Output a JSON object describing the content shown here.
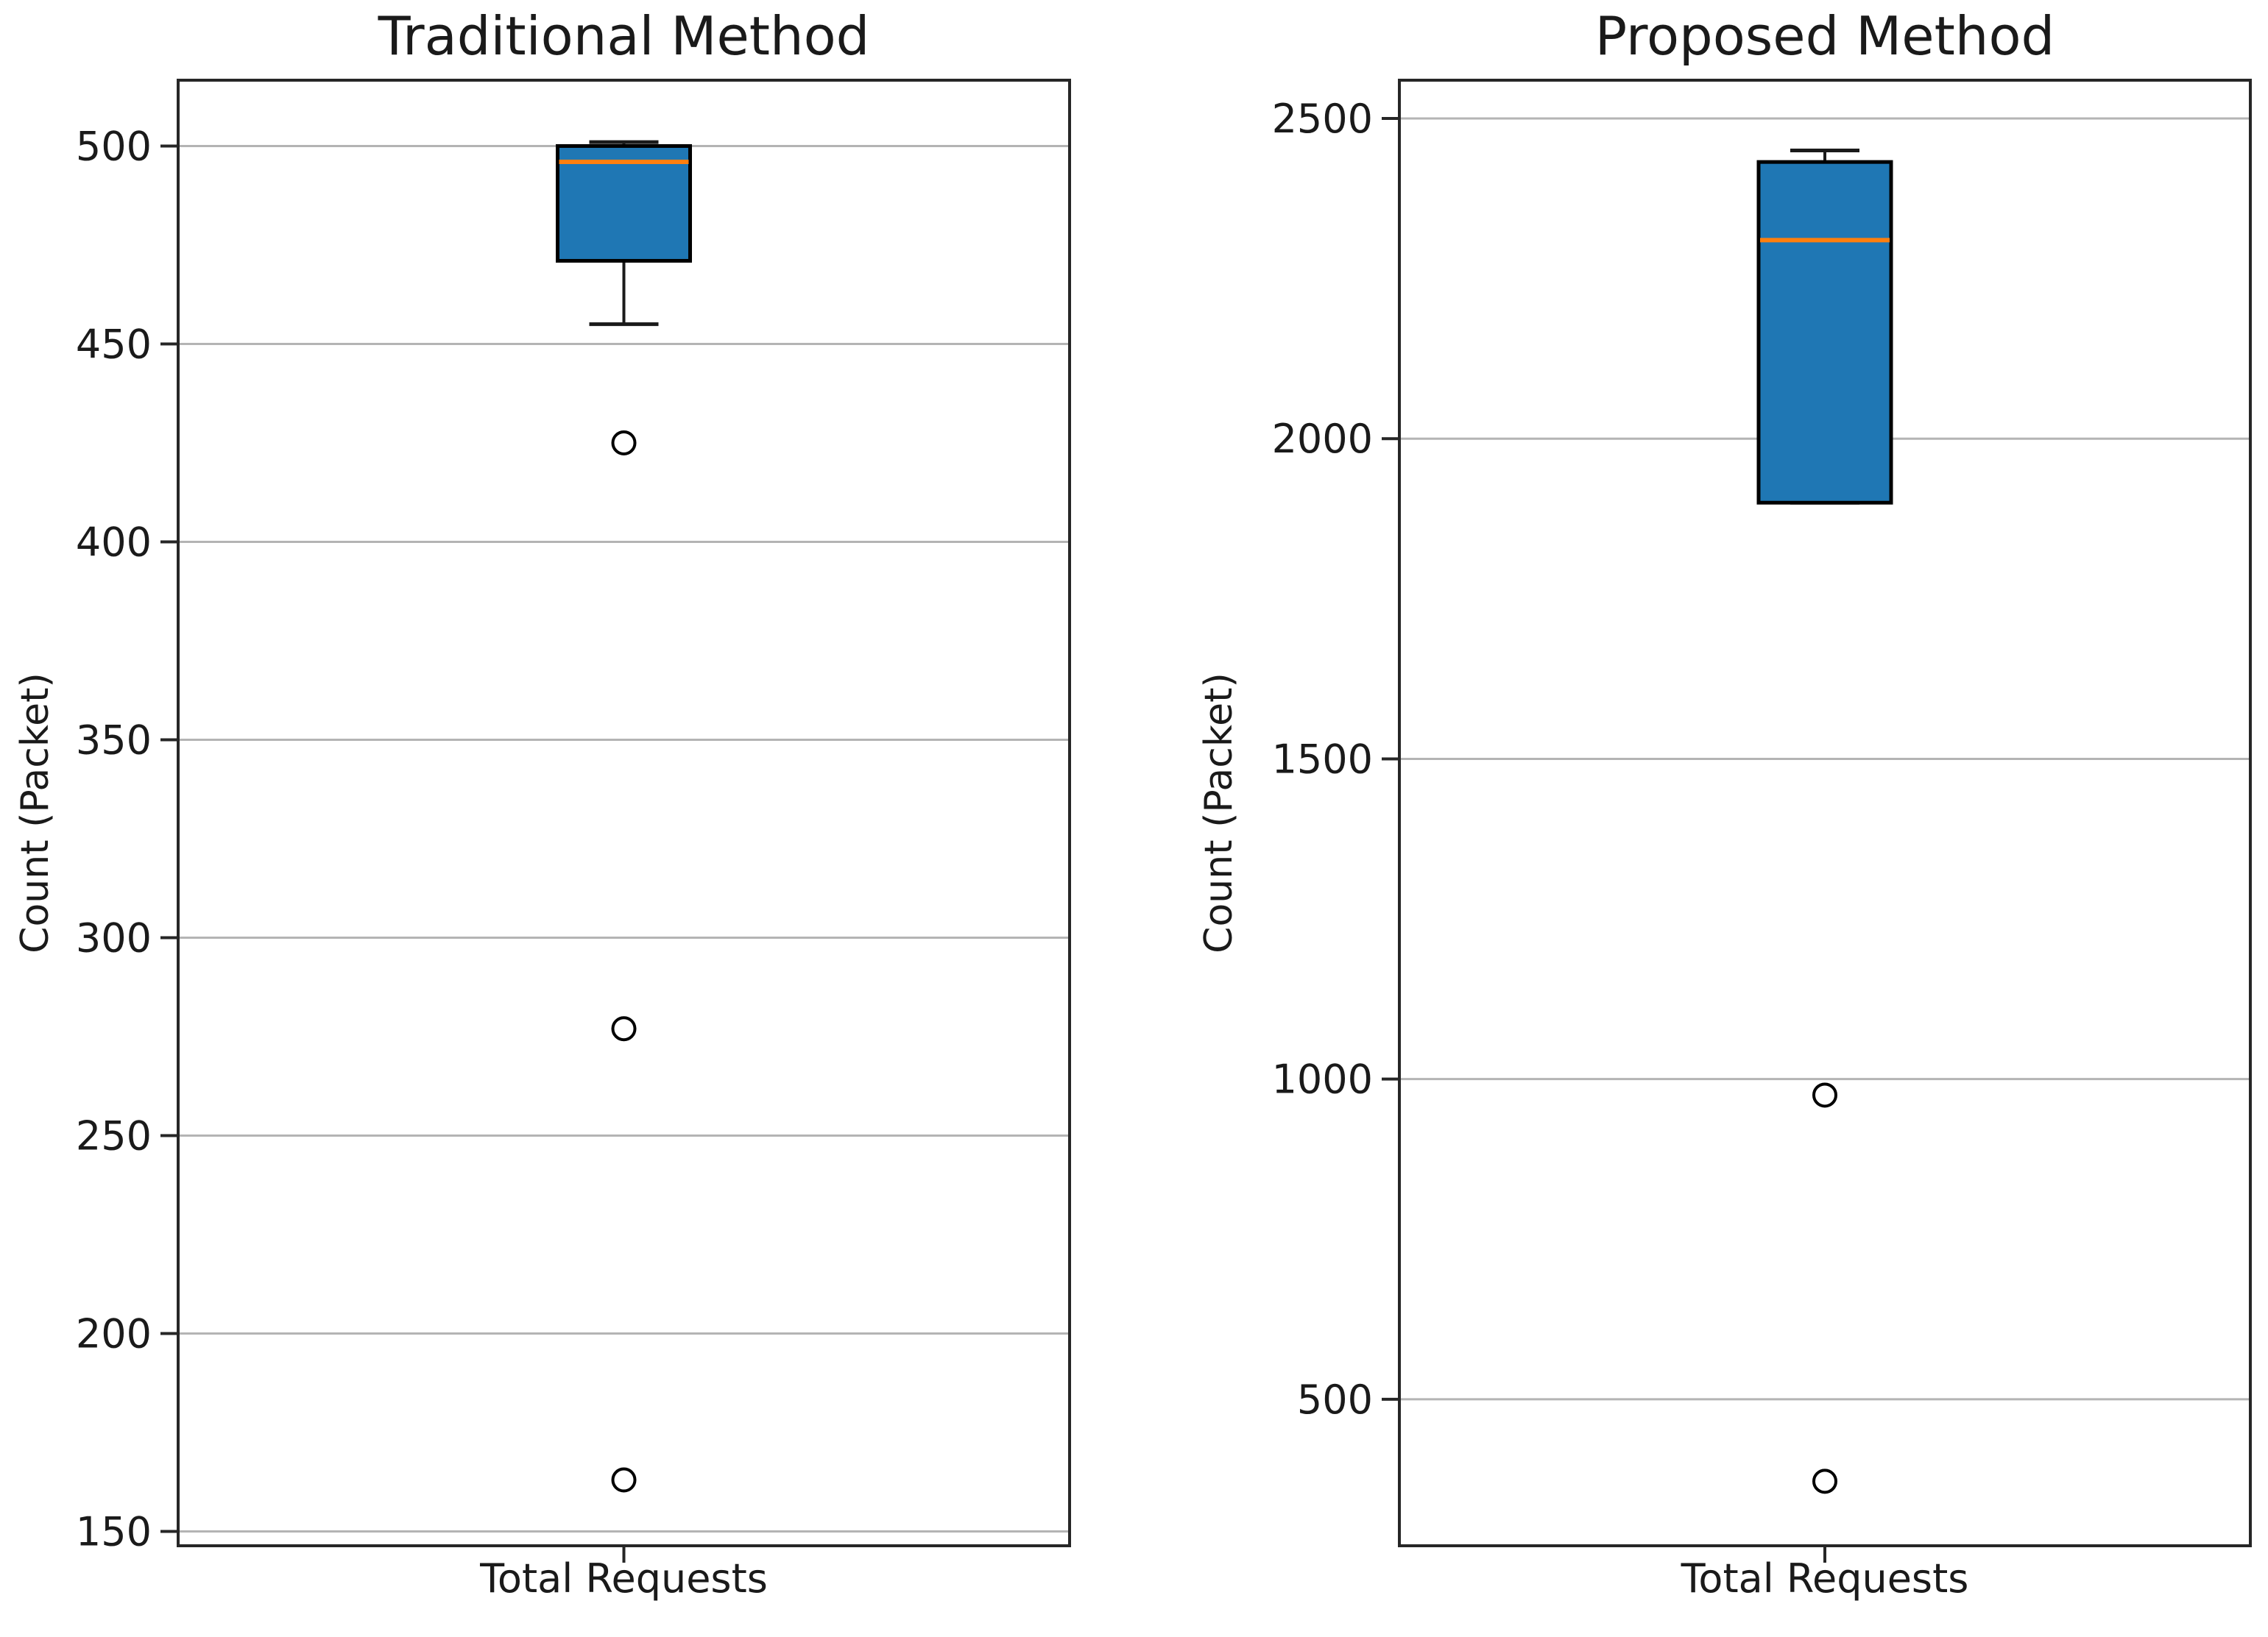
{
  "chart_data": {
    "type": "box",
    "layout": "two panels side by side, vertical box plots, horizontal gridlines on",
    "panels": [
      {
        "title": "Traditional Method",
        "ylabel": "Count (Packet)",
        "x_tick_label": "Total Requests",
        "yticks": [
          150,
          200,
          250,
          300,
          350,
          400,
          450,
          500
        ],
        "ylim": [
          146,
          517
        ],
        "box": {
          "q1": 471,
          "median": 496,
          "q3": 500,
          "whisker_low": 455,
          "whisker_high": 501,
          "outliers": [
            425,
            277,
            163
          ]
        }
      },
      {
        "title": "Proposed Method",
        "ylabel": "Count (Packet)",
        "x_tick_label": "Total Requests",
        "yticks": [
          500,
          1000,
          1500,
          2000,
          2500
        ],
        "ylim": [
          269,
          2562
        ],
        "box": {
          "q1": 1900,
          "median": 2310,
          "q3": 2432,
          "whisker_low": 1900,
          "whisker_high": 2450,
          "outliers": [
            975,
            372
          ]
        }
      }
    ],
    "colors": {
      "box_fill": "#1f77b4",
      "median": "#ff7f0e",
      "box_edge": "#000000",
      "whisker": "#1a1a1a",
      "gridline": "#b4b4b4",
      "spine": "#262626",
      "text": "#1a1a1a",
      "background": "#ffffff"
    }
  }
}
